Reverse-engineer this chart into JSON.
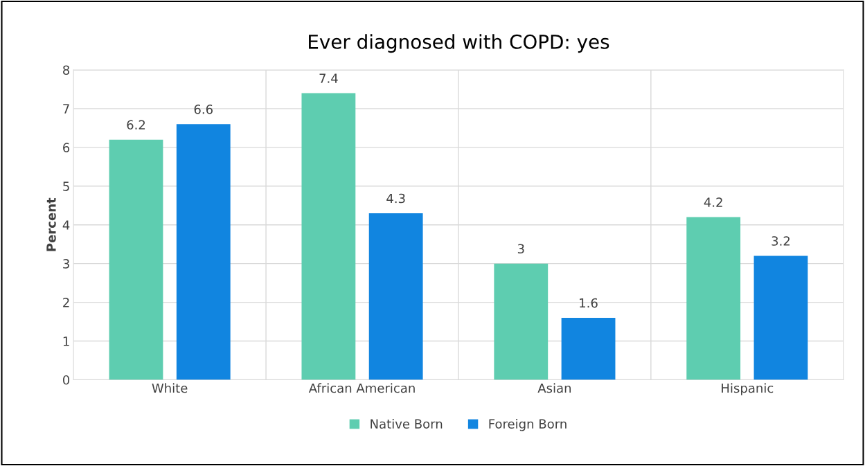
{
  "chart_data": {
    "type": "bar",
    "title": "Ever diagnosed with COPD: yes",
    "ylabel": "Percent",
    "categories": [
      "White",
      "African American",
      "Asian",
      "Hispanic"
    ],
    "series": [
      {
        "name": "Native Born",
        "color": "#5ecdb0",
        "values": [
          6.2,
          7.4,
          3,
          4.2
        ]
      },
      {
        "name": "Foreign Born",
        "color": "#1185e0",
        "values": [
          6.6,
          4.3,
          1.6,
          3.2
        ]
      }
    ],
    "ylim": [
      0,
      8
    ],
    "yticks": [
      0,
      1,
      2,
      3,
      4,
      5,
      6,
      7,
      8
    ],
    "grid": true,
    "legend": "bottom",
    "data_labels": true
  }
}
